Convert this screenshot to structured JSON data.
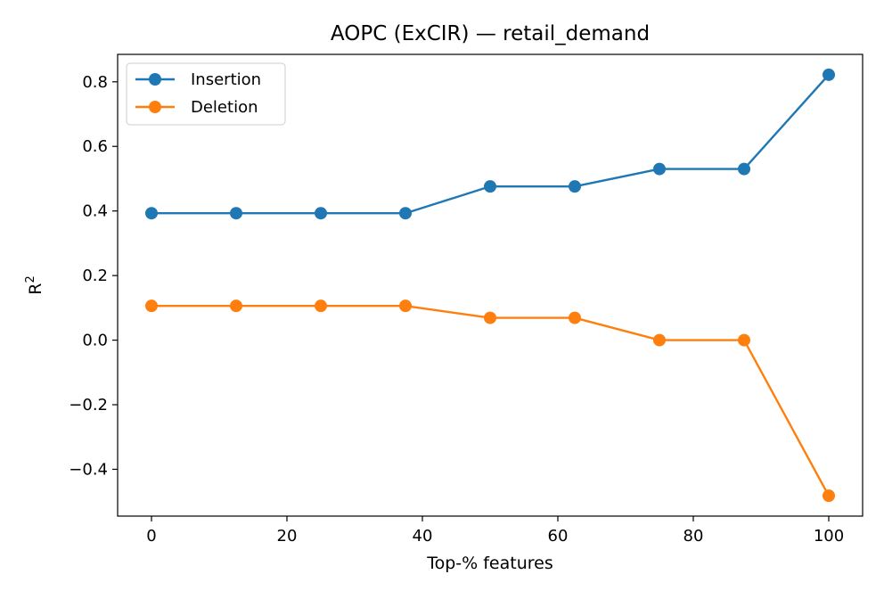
{
  "chart_data": {
    "type": "line",
    "title": "AOPC (ExCIR) — retail_demand",
    "xlabel": "Top-% features",
    "ylabel": {
      "base": "R",
      "sup": "2"
    },
    "xlim": [
      -5,
      105
    ],
    "ylim": [
      -0.545,
      0.885
    ],
    "xticks": [
      0,
      20,
      40,
      60,
      80,
      100
    ],
    "xtick_labels": [
      "0",
      "20",
      "40",
      "60",
      "80",
      "100"
    ],
    "yticks": [
      -0.4,
      -0.2,
      0.0,
      0.2,
      0.4,
      0.6,
      0.8
    ],
    "ytick_labels": [
      "−0.4",
      "−0.2",
      "0.0",
      "0.2",
      "0.4",
      "0.6",
      "0.8"
    ],
    "grid": false,
    "legend_position": "upper-left",
    "x": [
      0,
      12.5,
      25,
      37.5,
      50,
      62.5,
      75,
      87.5,
      100
    ],
    "series": [
      {
        "name": "Insertion",
        "color": "#1f77b4",
        "marker": "circle",
        "values": [
          0.393,
          0.393,
          0.393,
          0.393,
          0.476,
          0.476,
          0.53,
          0.53,
          0.822
        ]
      },
      {
        "name": "Deletion",
        "color": "#ff7f0e",
        "marker": "circle",
        "values": [
          0.106,
          0.106,
          0.106,
          0.106,
          0.069,
          0.069,
          0.0,
          0.0,
          -0.482
        ]
      }
    ]
  }
}
